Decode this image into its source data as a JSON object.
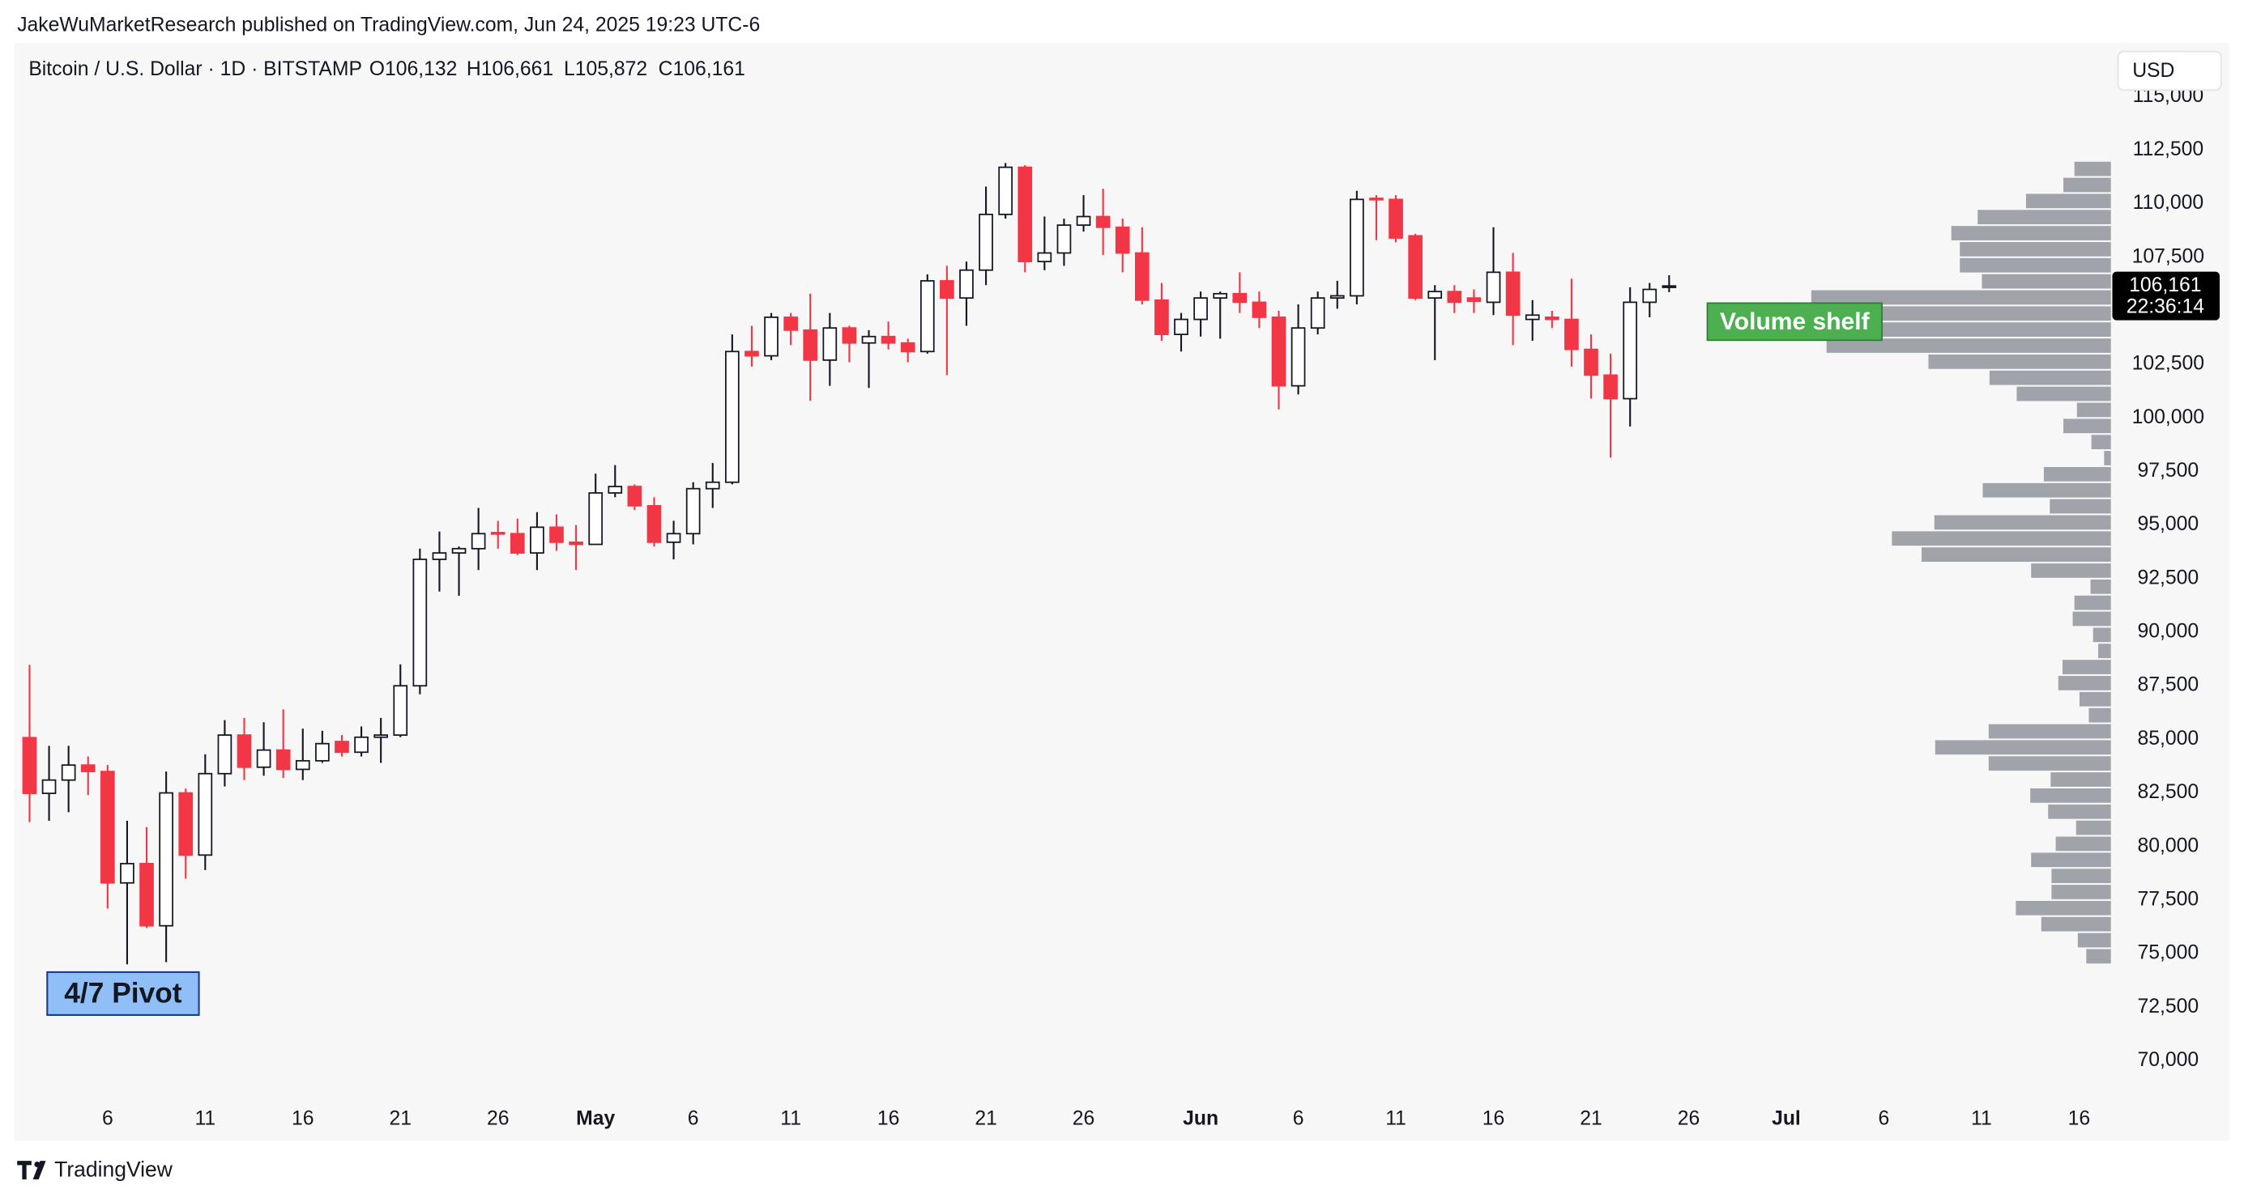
{
  "chart_data": {
    "type": "candlestick",
    "published": "JakeWuMarketResearch published on TradingView.com, Jun 24, 2025 19:23 UTC-6",
    "title": "Bitcoin / U.S. Dollar · 1D · BITSTAMP",
    "ohlc_labels": [
      "O106,132",
      "H106,661",
      "L105,872",
      "C106,161"
    ],
    "currency": "USD",
    "last_price": {
      "value": 106161,
      "label": "106,161"
    },
    "countdown": "22:36:14",
    "annotations": [
      "4/7 Pivot",
      "Volume shelf"
    ],
    "brand": "TradingView",
    "x": [
      "Apr 2",
      "Apr 3",
      "Apr 4",
      "Apr 5",
      "Apr 6",
      "Apr 7",
      "Apr 8",
      "Apr 9",
      "Apr 10",
      "Apr 11",
      "Apr 12",
      "Apr 13",
      "Apr 14",
      "Apr 15",
      "Apr 16",
      "Apr 17",
      "Apr 18",
      "Apr 19",
      "Apr 20",
      "Apr 21",
      "Apr 22",
      "Apr 23",
      "Apr 24",
      "Apr 25",
      "Apr 26",
      "Apr 27",
      "Apr 28",
      "Apr 29",
      "Apr 30",
      "May 1",
      "May 2",
      "May 3",
      "May 4",
      "May 5",
      "May 6",
      "May 7",
      "May 8",
      "May 9",
      "May 10",
      "May 11",
      "May 12",
      "May 13",
      "May 14",
      "May 15",
      "May 16",
      "May 17",
      "May 18",
      "May 19",
      "May 20",
      "May 21",
      "May 22",
      "May 23",
      "May 24",
      "May 25",
      "May 26",
      "May 27",
      "May 28",
      "May 29",
      "May 30",
      "May 31",
      "Jun 1",
      "Jun 2",
      "Jun 3",
      "Jun 4",
      "Jun 5",
      "Jun 6",
      "Jun 7",
      "Jun 8",
      "Jun 9",
      "Jun 10",
      "Jun 11",
      "Jun 12",
      "Jun 13",
      "Jun 14",
      "Jun 15",
      "Jun 16",
      "Jun 17",
      "Jun 18",
      "Jun 19",
      "Jun 20",
      "Jun 21",
      "Jun 22",
      "Jun 23",
      "Jun 24",
      "Jun 25"
    ],
    "open": [
      85080,
      82480,
      83100,
      83800,
      83500,
      78300,
      79200,
      76300,
      82500,
      79600,
      83400,
      85200,
      83700,
      84500,
      83600,
      84000,
      84900,
      84400,
      85100,
      85200,
      87500,
      93400,
      93700,
      93900,
      94650,
      94600,
      93700,
      94900,
      94200,
      94100,
      96500,
      96800,
      95900,
      94200,
      94600,
      96700,
      97000,
      103100,
      102900,
      104700,
      104100,
      102700,
      104200,
      103500,
      103800,
      103500,
      103100,
      106400,
      105600,
      106900,
      109500,
      111700,
      107300,
      107700,
      109000,
      109400,
      108900,
      107700,
      105500,
      103900,
      104600,
      105600,
      105800,
      105400,
      104700,
      101500,
      104200,
      105600,
      105700,
      110250,
      110200,
      108500,
      105600,
      105900,
      105600,
      105400,
      106800,
      104600,
      104700,
      104600,
      103200,
      102000,
      100900,
      105400,
      106132
    ],
    "high": [
      88480,
      84700,
      84700,
      84200,
      83800,
      81200,
      80900,
      83500,
      82700,
      84300,
      85900,
      86000,
      85800,
      86400,
      85500,
      85400,
      85200,
      85600,
      86000,
      88500,
      93900,
      94700,
      94000,
      95800,
      95200,
      95300,
      95600,
      95500,
      95000,
      97400,
      97800,
      96900,
      96300,
      95200,
      97000,
      97900,
      103900,
      104300,
      104900,
      104900,
      105800,
      104900,
      104300,
      104100,
      104500,
      103700,
      106700,
      107100,
      107300,
      110800,
      111900,
      111800,
      109400,
      109300,
      110400,
      110700,
      109300,
      108900,
      106300,
      104900,
      105900,
      105900,
      106800,
      105900,
      105000,
      105300,
      105900,
      106400,
      110600,
      110400,
      110400,
      108600,
      106200,
      106200,
      106000,
      108900,
      107700,
      105500,
      105000,
      106500,
      103900,
      103000,
      106100,
      106300,
      106661
    ],
    "low": [
      81140,
      81200,
      81600,
      82400,
      77100,
      74500,
      76200,
      74600,
      78500,
      78900,
      82800,
      83100,
      83300,
      83200,
      83100,
      83900,
      84200,
      84200,
      83900,
      85100,
      87100,
      91900,
      91700,
      92900,
      93900,
      93600,
      92900,
      93800,
      92900,
      94100,
      96300,
      95700,
      94000,
      93400,
      94100,
      95800,
      96900,
      102400,
      102700,
      103400,
      100800,
      101500,
      102600,
      101400,
      103200,
      102600,
      103000,
      102000,
      104300,
      106200,
      109300,
      106800,
      106900,
      107100,
      108700,
      107600,
      106800,
      105300,
      103600,
      103100,
      103800,
      103700,
      104900,
      104200,
      100400,
      101100,
      103900,
      105100,
      105300,
      108300,
      108200,
      105500,
      102700,
      104900,
      104900,
      104800,
      103400,
      103600,
      104200,
      102400,
      100900,
      98150,
      99600,
      104700,
      105872
    ],
    "close": [
      82480,
      83100,
      83800,
      83500,
      78300,
      79200,
      76300,
      82500,
      79600,
      83400,
      85200,
      83700,
      84500,
      83600,
      84000,
      84800,
      84400,
      85100,
      85200,
      87500,
      93400,
      93700,
      93900,
      94600,
      94600,
      93700,
      94900,
      94200,
      94100,
      96500,
      96800,
      95900,
      94200,
      94600,
      96700,
      97000,
      103100,
      102900,
      104700,
      104100,
      102700,
      104200,
      103500,
      103800,
      103500,
      103100,
      106400,
      105600,
      106900,
      109500,
      111700,
      107300,
      107700,
      109000,
      109400,
      108900,
      107700,
      105500,
      103900,
      104600,
      105600,
      105800,
      105400,
      104700,
      101500,
      104200,
      105600,
      105700,
      110200,
      110200,
      108400,
      105600,
      105900,
      105400,
      105450,
      106800,
      104800,
      104800,
      104600,
      103200,
      102000,
      100900,
      105400,
      106000,
      106161
    ],
    "colors": {
      "up": "#ffffff",
      "down": "#f23645",
      "up_border": "#131722"
    },
    "volume_profile": {
      "bins": [
        112000,
        111250,
        110500,
        109750,
        109000,
        108250,
        107500,
        106750,
        106000,
        105250,
        104500,
        103750,
        103000,
        102250,
        101500,
        100750,
        100000,
        99250,
        98500,
        97750,
        97000,
        96250,
        95500,
        94750,
        94000,
        93250,
        92500,
        91750,
        91000,
        90250,
        89500,
        88750,
        88000,
        87250,
        86500,
        85750,
        85000,
        84250,
        83500,
        82750,
        82000,
        81250,
        80500,
        79750,
        79000,
        78250,
        77500,
        76750,
        76000,
        75250,
        74500
      ],
      "values": [
        43,
        56,
        100,
        157,
        188,
        178,
        178,
        152,
        353,
        435,
        403,
        335,
        215,
        143,
        111,
        40,
        56,
        23,
        8,
        79,
        151,
        72,
        208,
        258,
        223,
        94,
        24,
        43,
        45,
        21,
        15,
        57,
        62,
        37,
        26,
        144,
        207,
        144,
        71,
        95,
        74,
        41,
        65,
        94,
        70,
        70,
        112,
        82,
        39,
        29
      ],
      "color": "#9c9ea6"
    },
    "xlim": [
      "Apr 1",
      "Jul 18"
    ],
    "xticks": [
      {
        "value": "Apr 6",
        "label": "6"
      },
      {
        "value": "Apr 11",
        "label": "11"
      },
      {
        "value": "Apr 16",
        "label": "16"
      },
      {
        "value": "Apr 21",
        "label": "21"
      },
      {
        "value": "Apr 26",
        "label": "26"
      },
      {
        "value": "May 1",
        "label": "May"
      },
      {
        "value": "May 6",
        "label": "6"
      },
      {
        "value": "May 11",
        "label": "11"
      },
      {
        "value": "May 16",
        "label": "16"
      },
      {
        "value": "May 21",
        "label": "21"
      },
      {
        "value": "May 26",
        "label": "26"
      },
      {
        "value": "Jun 1",
        "label": "Jun"
      },
      {
        "value": "Jun 6",
        "label": "6"
      },
      {
        "value": "Jun 11",
        "label": "11"
      },
      {
        "value": "Jun 16",
        "label": "16"
      },
      {
        "value": "Jun 21",
        "label": "21"
      },
      {
        "value": "Jun 26",
        "label": "26"
      },
      {
        "value": "Jul 1",
        "label": "Jul"
      },
      {
        "value": "Jul 6",
        "label": "6"
      },
      {
        "value": "Jul 11",
        "label": "11"
      },
      {
        "value": "Jul 16",
        "label": "16"
      }
    ],
    "ylim": [
      68465,
      115370
    ],
    "yticks": [
      {
        "value": 70000,
        "label": "70,000"
      },
      {
        "value": 72500,
        "label": "72,500"
      },
      {
        "value": 75000,
        "label": "75,000"
      },
      {
        "value": 77500,
        "label": "77,500"
      },
      {
        "value": 80000,
        "label": "80,000"
      },
      {
        "value": 82500,
        "label": "82,500"
      },
      {
        "value": 85000,
        "label": "85,000"
      },
      {
        "value": 87500,
        "label": "87,500"
      },
      {
        "value": 90000,
        "label": "90,000"
      },
      {
        "value": 92500,
        "label": "92,500"
      },
      {
        "value": 95000,
        "label": "95,000"
      },
      {
        "value": 97500,
        "label": "97,500"
      },
      {
        "value": 100000,
        "label": "100,000"
      },
      {
        "value": 102500,
        "label": "102,500"
      },
      {
        "value": 105000,
        "label": "105,000"
      },
      {
        "value": 107500,
        "label": "107,500"
      },
      {
        "value": 110000,
        "label": "110,000"
      },
      {
        "value": 112500,
        "label": "112,500"
      },
      {
        "value": 115000,
        "label": "115,000"
      }
    ],
    "grid": false
  }
}
